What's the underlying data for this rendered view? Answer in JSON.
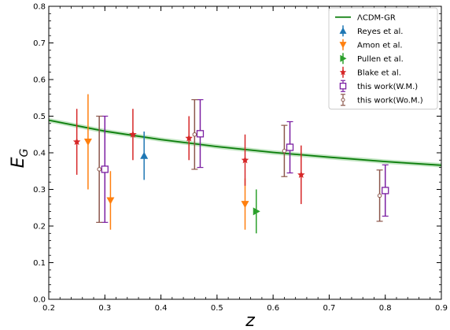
{
  "chart_data": {
    "type": "scatter",
    "xlabel": "z",
    "ylabel": "E",
    "ylabel_sub": "G",
    "xlim": [
      0.2,
      0.9
    ],
    "ylim": [
      0.0,
      0.8
    ],
    "xticks": [
      "0.2",
      "0.3",
      "0.4",
      "0.5",
      "0.6",
      "0.7",
      "0.8",
      "0.9"
    ],
    "yticks": [
      "0.0",
      "0.1",
      "0.2",
      "0.3",
      "0.4",
      "0.5",
      "0.6",
      "0.7",
      "0.8"
    ],
    "legend_position": "top-right",
    "model_curve": {
      "name": "ΛCDM-GR",
      "color": "#0a7d0a",
      "band_color": "#8fd08f",
      "x": [
        0.2,
        0.3,
        0.4,
        0.5,
        0.6,
        0.7,
        0.8,
        0.9
      ],
      "y": [
        0.489,
        0.459,
        0.436,
        0.417,
        0.401,
        0.388,
        0.376,
        0.366
      ],
      "band_halfwidth": 0.006
    },
    "series": [
      {
        "name": "Reyes et al.",
        "marker": "triangle-up",
        "color": "#1f77b4",
        "points": [
          {
            "x": 0.37,
            "y": 0.392,
            "lo": 0.326,
            "hi": 0.458
          }
        ]
      },
      {
        "name": "Amon et al.",
        "marker": "triangle-down",
        "color": "#ff7f0e",
        "points": [
          {
            "x": 0.27,
            "y": 0.43,
            "lo": 0.3,
            "hi": 0.56
          },
          {
            "x": 0.31,
            "y": 0.27,
            "lo": 0.19,
            "hi": 0.35
          },
          {
            "x": 0.55,
            "y": 0.26,
            "lo": 0.19,
            "hi": 0.33
          }
        ]
      },
      {
        "name": "Pullen et al.",
        "marker": "triangle-right",
        "color": "#2ca02c",
        "points": [
          {
            "x": 0.57,
            "y": 0.24,
            "lo": 0.18,
            "hi": 0.3
          }
        ]
      },
      {
        "name": "Blake et al.",
        "marker": "star",
        "color": "#d62728",
        "points": [
          {
            "x": 0.25,
            "y": 0.43,
            "lo": 0.34,
            "hi": 0.52
          },
          {
            "x": 0.35,
            "y": 0.45,
            "lo": 0.38,
            "hi": 0.52
          },
          {
            "x": 0.45,
            "y": 0.44,
            "lo": 0.38,
            "hi": 0.5
          },
          {
            "x": 0.55,
            "y": 0.38,
            "lo": 0.31,
            "hi": 0.45
          },
          {
            "x": 0.65,
            "y": 0.34,
            "lo": 0.26,
            "hi": 0.42
          }
        ]
      },
      {
        "name": "this work(W.M.)",
        "marker": "square-open",
        "color": "#7b1fa2",
        "points": [
          {
            "x": 0.3,
            "y": 0.355,
            "lo": 0.21,
            "hi": 0.5
          },
          {
            "x": 0.47,
            "y": 0.452,
            "lo": 0.36,
            "hi": 0.545
          },
          {
            "x": 0.63,
            "y": 0.415,
            "lo": 0.345,
            "hi": 0.485
          },
          {
            "x": 0.8,
            "y": 0.297,
            "lo": 0.227,
            "hi": 0.367
          }
        ]
      },
      {
        "name": "this work(Wo.M.)",
        "marker": "circle-open",
        "color": "#8c564b",
        "points": [
          {
            "x": 0.29,
            "y": 0.355,
            "lo": 0.21,
            "hi": 0.5
          },
          {
            "x": 0.46,
            "y": 0.45,
            "lo": 0.355,
            "hi": 0.545
          },
          {
            "x": 0.62,
            "y": 0.405,
            "lo": 0.335,
            "hi": 0.475
          },
          {
            "x": 0.79,
            "y": 0.283,
            "lo": 0.213,
            "hi": 0.353
          }
        ]
      }
    ]
  }
}
